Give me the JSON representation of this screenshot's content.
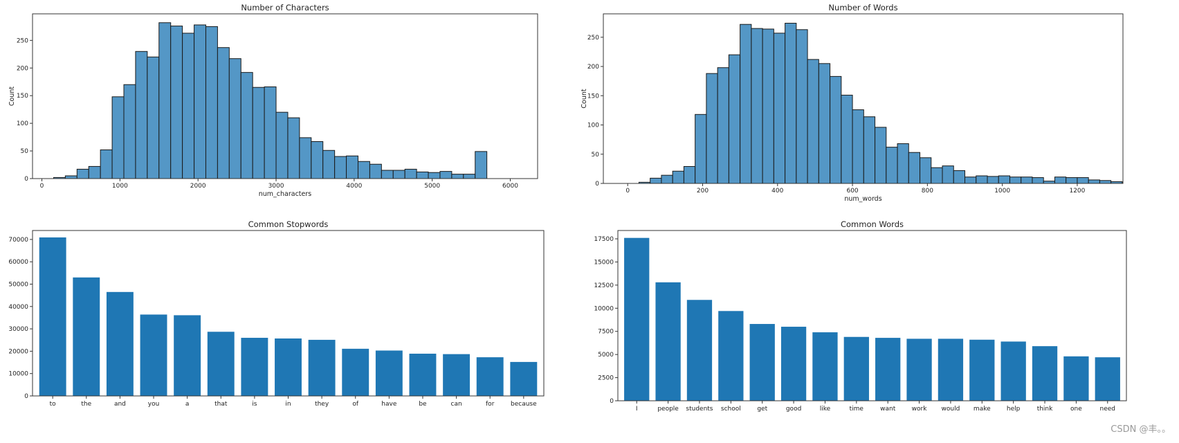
{
  "chart_data": [
    {
      "type": "bar",
      "subtype": "histogram",
      "title": "Number of Characters",
      "xlabel": "num_characters",
      "ylabel": "Count",
      "xlim": [
        -120,
        6350
      ],
      "ylim": [
        0,
        298
      ],
      "xticks": [
        0,
        1000,
        2000,
        3000,
        4000,
        5000,
        6000
      ],
      "yticks": [
        0,
        50,
        100,
        150,
        200,
        250
      ],
      "bin_start": 0,
      "bin_width": 150,
      "values": [
        0,
        2,
        5,
        17,
        22,
        52,
        148,
        170,
        230,
        220,
        282,
        276,
        263,
        278,
        275,
        237,
        217,
        192,
        165,
        166,
        120,
        110,
        74,
        67,
        51,
        40,
        41,
        31,
        26,
        15,
        15,
        17,
        12,
        11,
        13,
        8,
        8,
        49
      ]
    },
    {
      "type": "bar",
      "subtype": "histogram",
      "title": "Number of Words",
      "xlabel": "num_words",
      "ylabel": "Count",
      "xlim": [
        -65,
        1322
      ],
      "ylim": [
        0,
        290
      ],
      "xticks": [
        0,
        200,
        400,
        600,
        800,
        1000,
        1200
      ],
      "yticks": [
        0,
        50,
        100,
        150,
        200,
        250
      ],
      "bin_start": 0,
      "bin_width": 30,
      "values": [
        0,
        2,
        9,
        14,
        21,
        29,
        118,
        188,
        198,
        220,
        272,
        265,
        264,
        257,
        274,
        263,
        212,
        205,
        183,
        151,
        126,
        114,
        96,
        62,
        68,
        53,
        44,
        27,
        30,
        22,
        11,
        13,
        12,
        13,
        11,
        11,
        10,
        4,
        11,
        10,
        10,
        6,
        5,
        3
      ]
    },
    {
      "type": "bar",
      "title": "Common Stopwords",
      "xlabel": "",
      "ylabel": "",
      "ylim": [
        0,
        74000
      ],
      "yticks": [
        0,
        10000,
        20000,
        30000,
        40000,
        50000,
        60000,
        70000
      ],
      "categories": [
        "to",
        "the",
        "and",
        "you",
        "a",
        "that",
        "is",
        "in",
        "they",
        "of",
        "have",
        "be",
        "can",
        "for",
        "because"
      ],
      "values": [
        70900,
        53000,
        46500,
        36400,
        36100,
        28700,
        26000,
        25700,
        25100,
        21100,
        20300,
        18900,
        18700,
        17300,
        15200
      ]
    },
    {
      "type": "bar",
      "title": "Common Words",
      "xlabel": "",
      "ylabel": "",
      "ylim": [
        0,
        18400
      ],
      "yticks": [
        0,
        2500,
        5000,
        7500,
        10000,
        12500,
        15000,
        17500
      ],
      "categories": [
        "I",
        "people",
        "students",
        "school",
        "get",
        "good",
        "like",
        "time",
        "want",
        "work",
        "would",
        "make",
        "help",
        "think",
        "one",
        "need"
      ],
      "values": [
        17600,
        12800,
        10900,
        9700,
        8300,
        8000,
        7400,
        6900,
        6800,
        6700,
        6700,
        6600,
        6400,
        5900,
        4800,
        4700
      ]
    }
  ],
  "watermark": "CSDN @丰。。"
}
